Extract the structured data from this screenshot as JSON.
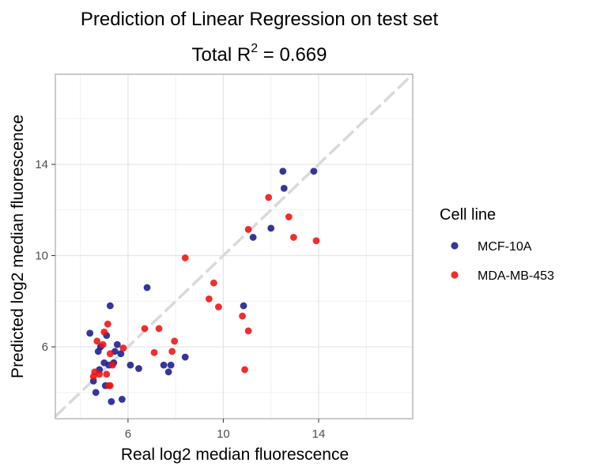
{
  "chart_data": {
    "type": "scatter",
    "title": "Prediction of Linear Regression on test set",
    "subtitle_prefix": "Total R",
    "subtitle_sup": "2",
    "subtitle_suffix": " = 0.669",
    "xlabel": "Real log2 median fluorescence",
    "ylabel": "Predicted log2 median fluorescence",
    "xlim": [
      2.95,
      17.95
    ],
    "ylim": [
      2.85,
      17.95
    ],
    "xticks": [
      6,
      10,
      14
    ],
    "yticks": [
      6,
      10,
      14
    ],
    "grid": true,
    "reference_line": "y = x",
    "legend": {
      "title": "Cell line",
      "position": "right"
    },
    "series": [
      {
        "name": "MCF-10A",
        "color": "#1a1a8c",
        "points": [
          [
            4.4,
            6.6
          ],
          [
            4.55,
            4.5
          ],
          [
            4.65,
            4.0
          ],
          [
            4.75,
            5.8
          ],
          [
            4.85,
            6.0
          ],
          [
            4.8,
            5.0
          ],
          [
            5.0,
            5.3
          ],
          [
            5.05,
            4.3
          ],
          [
            5.1,
            6.5
          ],
          [
            5.2,
            5.2
          ],
          [
            5.25,
            7.8
          ],
          [
            5.3,
            3.6
          ],
          [
            5.4,
            5.3
          ],
          [
            5.45,
            5.8
          ],
          [
            5.55,
            6.1
          ],
          [
            5.7,
            5.7
          ],
          [
            5.75,
            3.7
          ],
          [
            6.1,
            5.2
          ],
          [
            6.45,
            5.05
          ],
          [
            6.8,
            8.6
          ],
          [
            7.5,
            5.2
          ],
          [
            7.7,
            4.9
          ],
          [
            7.8,
            5.2
          ],
          [
            8.4,
            5.55
          ],
          [
            10.85,
            7.8
          ],
          [
            11.25,
            10.8
          ],
          [
            12.0,
            11.2
          ],
          [
            12.5,
            13.7
          ],
          [
            12.55,
            12.95
          ],
          [
            13.8,
            13.7
          ]
        ]
      },
      {
        "name": "MDA-MB-453",
        "color": "#ee1111",
        "points": [
          [
            4.55,
            4.7
          ],
          [
            4.6,
            4.9
          ],
          [
            4.7,
            6.25
          ],
          [
            4.8,
            4.8
          ],
          [
            4.95,
            6.1
          ],
          [
            5.0,
            6.65
          ],
          [
            5.1,
            4.8
          ],
          [
            5.15,
            7.0
          ],
          [
            5.2,
            4.3
          ],
          [
            5.25,
            4.3
          ],
          [
            5.25,
            5.7
          ],
          [
            5.35,
            5.2
          ],
          [
            5.8,
            5.95
          ],
          [
            6.7,
            6.8
          ],
          [
            7.1,
            5.75
          ],
          [
            7.3,
            6.8
          ],
          [
            7.85,
            5.8
          ],
          [
            7.95,
            6.25
          ],
          [
            8.4,
            9.9
          ],
          [
            9.4,
            8.1
          ],
          [
            9.6,
            8.8
          ],
          [
            9.8,
            7.75
          ],
          [
            10.8,
            7.35
          ],
          [
            10.9,
            5.0
          ],
          [
            11.05,
            6.7
          ],
          [
            11.05,
            11.15
          ],
          [
            11.9,
            12.55
          ],
          [
            12.75,
            11.7
          ],
          [
            12.95,
            10.8
          ],
          [
            13.9,
            10.65
          ]
        ]
      }
    ]
  }
}
